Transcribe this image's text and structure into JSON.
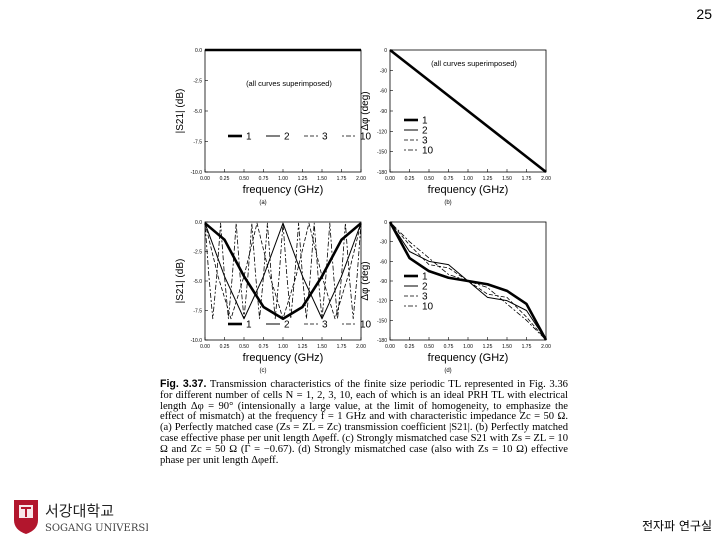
{
  "page_number": "25",
  "lab_name": "전자파 연구실",
  "university": {
    "korean": "서강대학교",
    "english": "SOGANG UNIVERSITY"
  },
  "chart_data": [
    {
      "type": "line",
      "panel": "(a)",
      "xlabel": "frequency (GHz)",
      "ylabel": "|S21| (dB)",
      "xlim": [
        0,
        2
      ],
      "ylim": [
        -10,
        0
      ],
      "xticks": [
        "0.00",
        "0.25",
        "0.50",
        "0.75",
        "1.00",
        "1.25",
        "1.50",
        "1.75",
        "2.00"
      ],
      "yticks": [
        "0.0",
        "-2.5",
        "-5.0",
        "-7.5",
        "-10.0"
      ],
      "annotation": "(all curves superimposed)",
      "legend": [
        "1",
        "2",
        "3",
        "10"
      ],
      "series": [
        {
          "name": "all",
          "x": [
            0,
            2
          ],
          "values": [
            0,
            0
          ]
        }
      ]
    },
    {
      "type": "line",
      "panel": "(b)",
      "xlabel": "frequency (GHz)",
      "ylabel": "Δφ (deg)",
      "xlim": [
        0,
        2
      ],
      "ylim": [
        -180,
        0
      ],
      "xticks": [
        "0.00",
        "0.25",
        "0.50",
        "0.75",
        "1.00",
        "1.25",
        "1.50",
        "1.75",
        "2.00"
      ],
      "yticks": [
        "0",
        "-30",
        "-60",
        "-90",
        "-120",
        "-150",
        "-180"
      ],
      "annotation": "(all curves superimposed)",
      "legend": [
        "1",
        "2",
        "3",
        "10"
      ],
      "series": [
        {
          "name": "all",
          "x": [
            0,
            2
          ],
          "values": [
            0,
            -180
          ]
        }
      ]
    },
    {
      "type": "line",
      "panel": "(c)",
      "xlabel": "frequency (GHz)",
      "ylabel": "|S21| (dB)",
      "xlim": [
        0,
        2
      ],
      "ylim": [
        -10,
        0
      ],
      "xticks": [
        "0.00",
        "0.25",
        "0.50",
        "0.75",
        "1.00",
        "1.25",
        "1.50",
        "1.75",
        "2.00"
      ],
      "yticks": [
        "0.0",
        "-2.5",
        "-5.0",
        "-7.5",
        "-10.0"
      ],
      "legend": [
        "1",
        "2",
        "3",
        "10"
      ],
      "series": [
        {
          "name": "1",
          "x": [
            0,
            0.25,
            0.5,
            0.75,
            1,
            1.25,
            1.5,
            1.75,
            2
          ],
          "values": [
            -0.1,
            -1.5,
            -4.6,
            -7.2,
            -8.2,
            -7.2,
            -4.6,
            -1.5,
            -0.1
          ]
        },
        {
          "name": "2",
          "x": [
            0,
            0.25,
            0.5,
            0.75,
            1,
            1.25,
            1.5,
            1.75,
            2
          ],
          "values": [
            -0.1,
            -4.6,
            -8.2,
            -4.6,
            -0.1,
            -4.6,
            -8.2,
            -4.6,
            -0.1
          ]
        },
        {
          "name": "3",
          "x": [
            0,
            0.167,
            0.333,
            0.5,
            0.667,
            0.833,
            1,
            1.167,
            1.333,
            1.5,
            1.667,
            1.833,
            2
          ],
          "values": [
            -0.1,
            -4.6,
            -8.2,
            -4.6,
            -0.1,
            -4.6,
            -8.2,
            -4.6,
            -0.1,
            -4.6,
            -8.2,
            -4.6,
            -0.1
          ]
        },
        {
          "name": "10",
          "x": [
            0,
            0.05,
            0.1,
            0.15,
            0.2,
            0.25,
            0.3,
            0.35,
            0.4,
            0.45,
            0.5,
            0.55,
            0.6,
            0.65,
            0.7,
            0.75,
            0.8,
            0.85,
            0.9,
            0.95,
            1,
            1.05,
            1.1,
            1.15,
            1.2,
            1.25,
            1.3,
            1.35,
            1.4,
            1.45,
            1.5,
            1.55,
            1.6,
            1.65,
            1.7,
            1.75,
            1.8,
            1.85,
            1.9,
            1.95,
            2
          ],
          "values": [
            -0.1,
            -4.6,
            -8.2,
            -4.6,
            -0.1,
            -4.6,
            -8.2,
            -4.6,
            -0.1,
            -4.6,
            -8.2,
            -4.6,
            -0.1,
            -4.6,
            -8.2,
            -4.6,
            -0.1,
            -4.6,
            -8.2,
            -4.6,
            -0.1,
            -4.6,
            -8.2,
            -4.6,
            -0.1,
            -4.6,
            -8.2,
            -4.6,
            -0.1,
            -4.6,
            -8.2,
            -4.6,
            -0.1,
            -4.6,
            -8.2,
            -4.6,
            -0.1,
            -4.6,
            -8.2,
            -4.6,
            -0.1
          ]
        }
      ]
    },
    {
      "type": "line",
      "panel": "(d)",
      "xlabel": "frequency (GHz)",
      "ylabel": "Δφ (deg)",
      "xlim": [
        0,
        2
      ],
      "ylim": [
        -180,
        0
      ],
      "xticks": [
        "0.00",
        "0.25",
        "0.50",
        "0.75",
        "1.00",
        "1.25",
        "1.50",
        "1.75",
        "2.00"
      ],
      "yticks": [
        "0",
        "-30",
        "-60",
        "-90",
        "-120",
        "-150",
        "-180"
      ],
      "legend": [
        "1",
        "2",
        "3",
        "10"
      ],
      "series": [
        {
          "name": "1",
          "x": [
            0,
            0.25,
            0.5,
            0.75,
            1,
            1.25,
            1.5,
            1.75,
            2
          ],
          "values": [
            0,
            -55,
            -75,
            -85,
            -90,
            -95,
            -105,
            -125,
            -180
          ]
        },
        {
          "name": "2",
          "x": [
            0,
            0.25,
            0.5,
            0.75,
            1,
            1.25,
            1.5,
            1.75,
            2
          ],
          "values": [
            0,
            -45,
            -60,
            -65,
            -90,
            -115,
            -120,
            -135,
            -180
          ]
        },
        {
          "name": "3",
          "x": [
            0,
            0.25,
            0.5,
            0.75,
            1,
            1.25,
            1.5,
            1.75,
            2
          ],
          "values": [
            0,
            -35,
            -65,
            -70,
            -90,
            -110,
            -115,
            -145,
            -180
          ]
        },
        {
          "name": "10",
          "x": [
            0,
            0.25,
            0.5,
            0.75,
            1,
            1.25,
            1.5,
            1.75,
            2
          ],
          "values": [
            0,
            -30,
            -55,
            -80,
            -90,
            -100,
            -125,
            -150,
            -180
          ]
        }
      ]
    }
  ],
  "caption": {
    "label": "Fig. 3.37.",
    "text": "Transmission characteristics of the finite size periodic TL represented in Fig. 3.36 for different number of cells N = 1, 2, 3, 10, each of which is an ideal PRH TL with electrical length Δφ = 90° (intensionally a large value, at the limit of homogeneity, to emphasize the effect of mismatch) at the frequency f = 1 GHz and with characteristic impedance Zc = 50 Ω. (a) Perfectly matched case (Zs = ZL = Zc) transmission coefficient |S21|. (b) Perfectly matched case effective phase per unit length Δφeff. (c) Strongly mismatched case S21 with Zs = ZL = 10 Ω and Zc = 50 Ω (Γ = −0.67). (d) Strongly mismatched case (also with Zs = 10 Ω) effective phase per unit length Δφeff."
  }
}
